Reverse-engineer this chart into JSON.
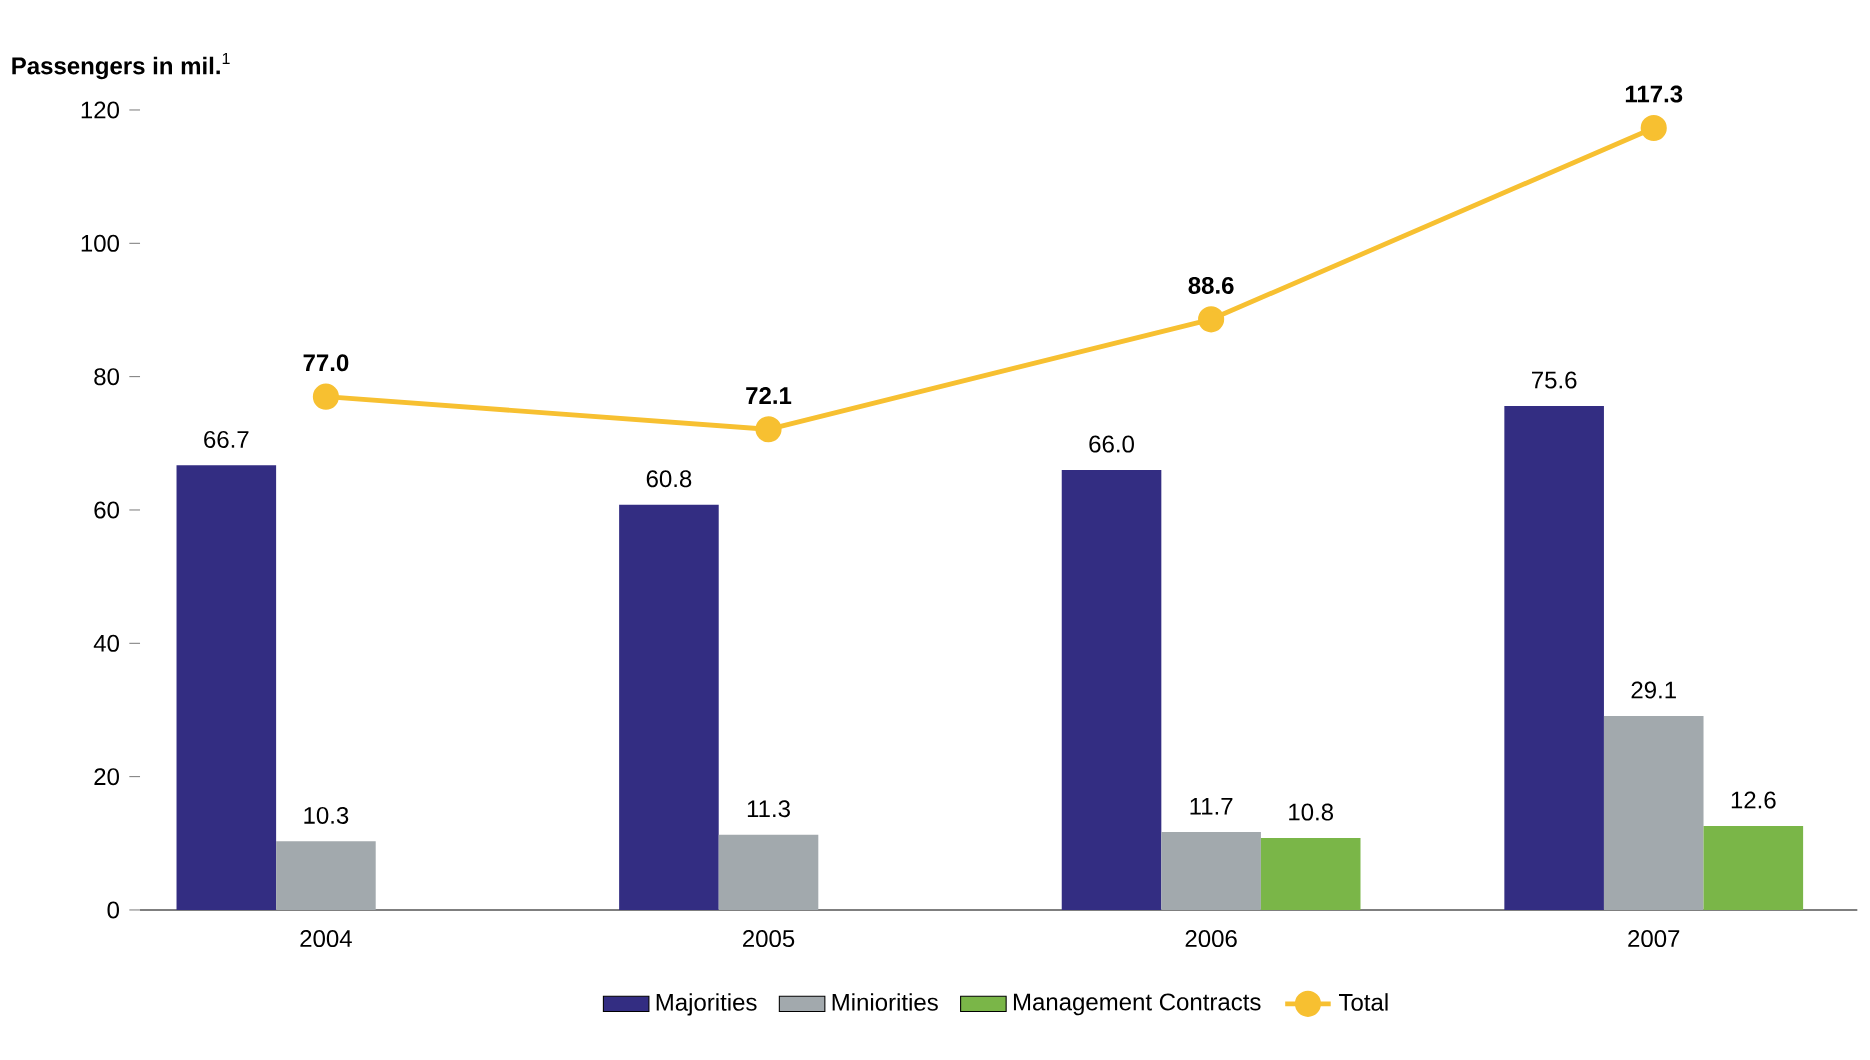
{
  "chart_data": {
    "type": "bar",
    "ylabel": "**Passengers in mil.**$^{1}$",
    "categories": [
      "2004",
      "2005",
      "2006",
      "2007"
    ],
    "ylim": [
      0,
      120
    ],
    "yticks": [
      0,
      20,
      40,
      60,
      80,
      100,
      120
    ],
    "grid": false,
    "legend": "bottom",
    "series": [
      {
        "name": "Majorities",
        "color": "#332d82",
        "values": [
          66.7,
          60.8,
          66.0,
          75.6
        ],
        "value_labels": [
          "66.7",
          "60.8",
          "66.0",
          "75.6"
        ]
      },
      {
        "name": "Miniorities",
        "color": "#a2a9ad",
        "values": [
          10.3,
          11.3,
          11.7,
          29.1
        ],
        "value_labels": [
          "10.3",
          "11.3",
          "11.7",
          "29.1"
        ]
      },
      {
        "name": "Management Contracts",
        "color": "#7ab648",
        "values": [
          null,
          null,
          10.8,
          12.6
        ],
        "value_labels": [
          null,
          null,
          "10.8",
          "12.6"
        ]
      },
      {
        "name": "Total",
        "type": "line",
        "color": "#f7c031",
        "marker": "circle",
        "values": [
          77.0,
          72.1,
          88.6,
          117.3
        ],
        "value_labels": [
          "**77.0**",
          "**72.1**",
          "**88.6**",
          "**117.3**"
        ]
      }
    ]
  }
}
